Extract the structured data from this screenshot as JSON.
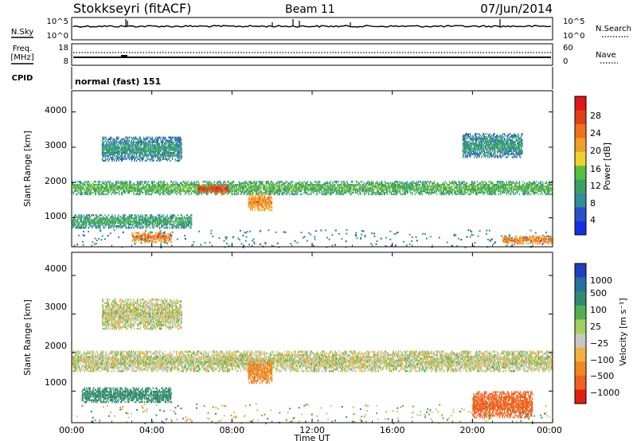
{
  "header": {
    "station": "Stokkseyri (fitACF)",
    "beam": "Beam 11",
    "date": "07/Jun/2014"
  },
  "nsky_panel": {
    "left_label": "N.Sky",
    "left_ticks": [
      "10^5",
      "10^0"
    ],
    "right_label": "N.Search",
    "right_ticks": [
      "10^5",
      "10^0"
    ]
  },
  "freq_panel": {
    "left_label_1": "Freq.",
    "left_label_2": "[MHz]",
    "left_ticks": [
      "18",
      "8"
    ],
    "right_label": "Nave",
    "right_ticks": [
      "60",
      "0"
    ]
  },
  "cpid_panel": {
    "label": "CPID",
    "text": "normal (fast) 151"
  },
  "chart_data": [
    {
      "type": "heatmap",
      "title": "Power",
      "ylabel": "Slant Range [km]",
      "xlabel": "",
      "xlim": [
        0,
        24
      ],
      "ylim": [
        180,
        4600
      ],
      "y_ticks": [
        1000,
        2000,
        3000,
        4000
      ],
      "y_tick_labels": [
        "1000",
        "2000",
        "3000",
        "4000"
      ],
      "colorbar": {
        "label": "Power [dB]",
        "ticks": [
          "4",
          "8",
          "12",
          "16",
          "20",
          "24",
          "28"
        ],
        "colors": [
          "#1530e0",
          "#2850c8",
          "#2e8f9a",
          "#3ca060",
          "#55c040",
          "#f0d030",
          "#f0a028",
          "#f07020",
          "#e04018",
          "#e01818"
        ]
      },
      "features": [
        {
          "name": "main echo band",
          "start": 0,
          "end": 24,
          "range_km": [
            1650,
            2050
          ],
          "power_db": 10
        },
        {
          "name": "echo patch",
          "start": 6.3,
          "end": 7.8,
          "range_km": [
            1700,
            1950
          ],
          "power_db": 26
        },
        {
          "name": "echo patch",
          "start": 8.8,
          "end": 10.0,
          "range_km": [
            1200,
            1700
          ],
          "power_db": 20
        },
        {
          "name": "echo patch",
          "start": 3.0,
          "end": 5.0,
          "range_km": [
            300,
            600
          ],
          "power_db": 22
        },
        {
          "name": "echo patch",
          "start": 21.5,
          "end": 24,
          "range_km": [
            250,
            500
          ],
          "power_db": 22
        },
        {
          "name": "near-range echoes",
          "start": 0,
          "end": 6.0,
          "range_km": [
            700,
            1100
          ],
          "power_db": 8
        },
        {
          "name": "far-range echoes",
          "start": 1.5,
          "end": 5.5,
          "range_km": [
            2600,
            3300
          ],
          "power_db": 6
        },
        {
          "name": "far-range echoes",
          "start": 19.5,
          "end": 22.5,
          "range_km": [
            2700,
            3400
          ],
          "power_db": 6
        }
      ]
    },
    {
      "type": "heatmap",
      "title": "Velocity",
      "ylabel": "Slant Range [km]",
      "xlabel": "Time UT",
      "xlim": [
        0,
        24
      ],
      "ylim": [
        180,
        4600
      ],
      "x_ticks": [
        0,
        4,
        8,
        12,
        16,
        20,
        24
      ],
      "x_tick_labels": [
        "00:00",
        "04:00",
        "08:00",
        "12:00",
        "16:00",
        "20:00",
        "00:00"
      ],
      "y_ticks": [
        1000,
        2000,
        3000,
        4000
      ],
      "y_tick_labels": [
        "1000",
        "2000",
        "3000",
        "4000"
      ],
      "colorbar": {
        "label": "Velocity [m s⁻¹]",
        "ticks": [
          "1000",
          "500",
          "100",
          "25",
          "−25",
          "−100",
          "−500",
          "−1000"
        ],
        "colors": [
          "#2040c0",
          "#2870a0",
          "#2e8a70",
          "#50b050",
          "#a0d060",
          "#c8c8c0",
          "#f0b040",
          "#f08820",
          "#f06020",
          "#e02010"
        ]
      },
      "features": [
        {
          "name": "ground scatter band",
          "start": 0,
          "end": 24,
          "range_km": [
            1500,
            2050
          ],
          "velocity_ms": 0
        },
        {
          "name": "negative velocity patch",
          "start": 8.8,
          "end": 10.0,
          "range_km": [
            1200,
            1800
          ],
          "velocity_ms": -300
        },
        {
          "name": "positive velocity echoes",
          "start": 0.5,
          "end": 5.0,
          "range_km": [
            700,
            1100
          ],
          "velocity_ms": 150
        },
        {
          "name": "negative velocity echoes",
          "start": 20.0,
          "end": 23.0,
          "range_km": [
            300,
            1000
          ],
          "velocity_ms": -400
        },
        {
          "name": "far-range echoes",
          "start": 1.5,
          "end": 5.5,
          "range_km": [
            2600,
            3400
          ],
          "velocity_ms": 0
        }
      ]
    }
  ]
}
